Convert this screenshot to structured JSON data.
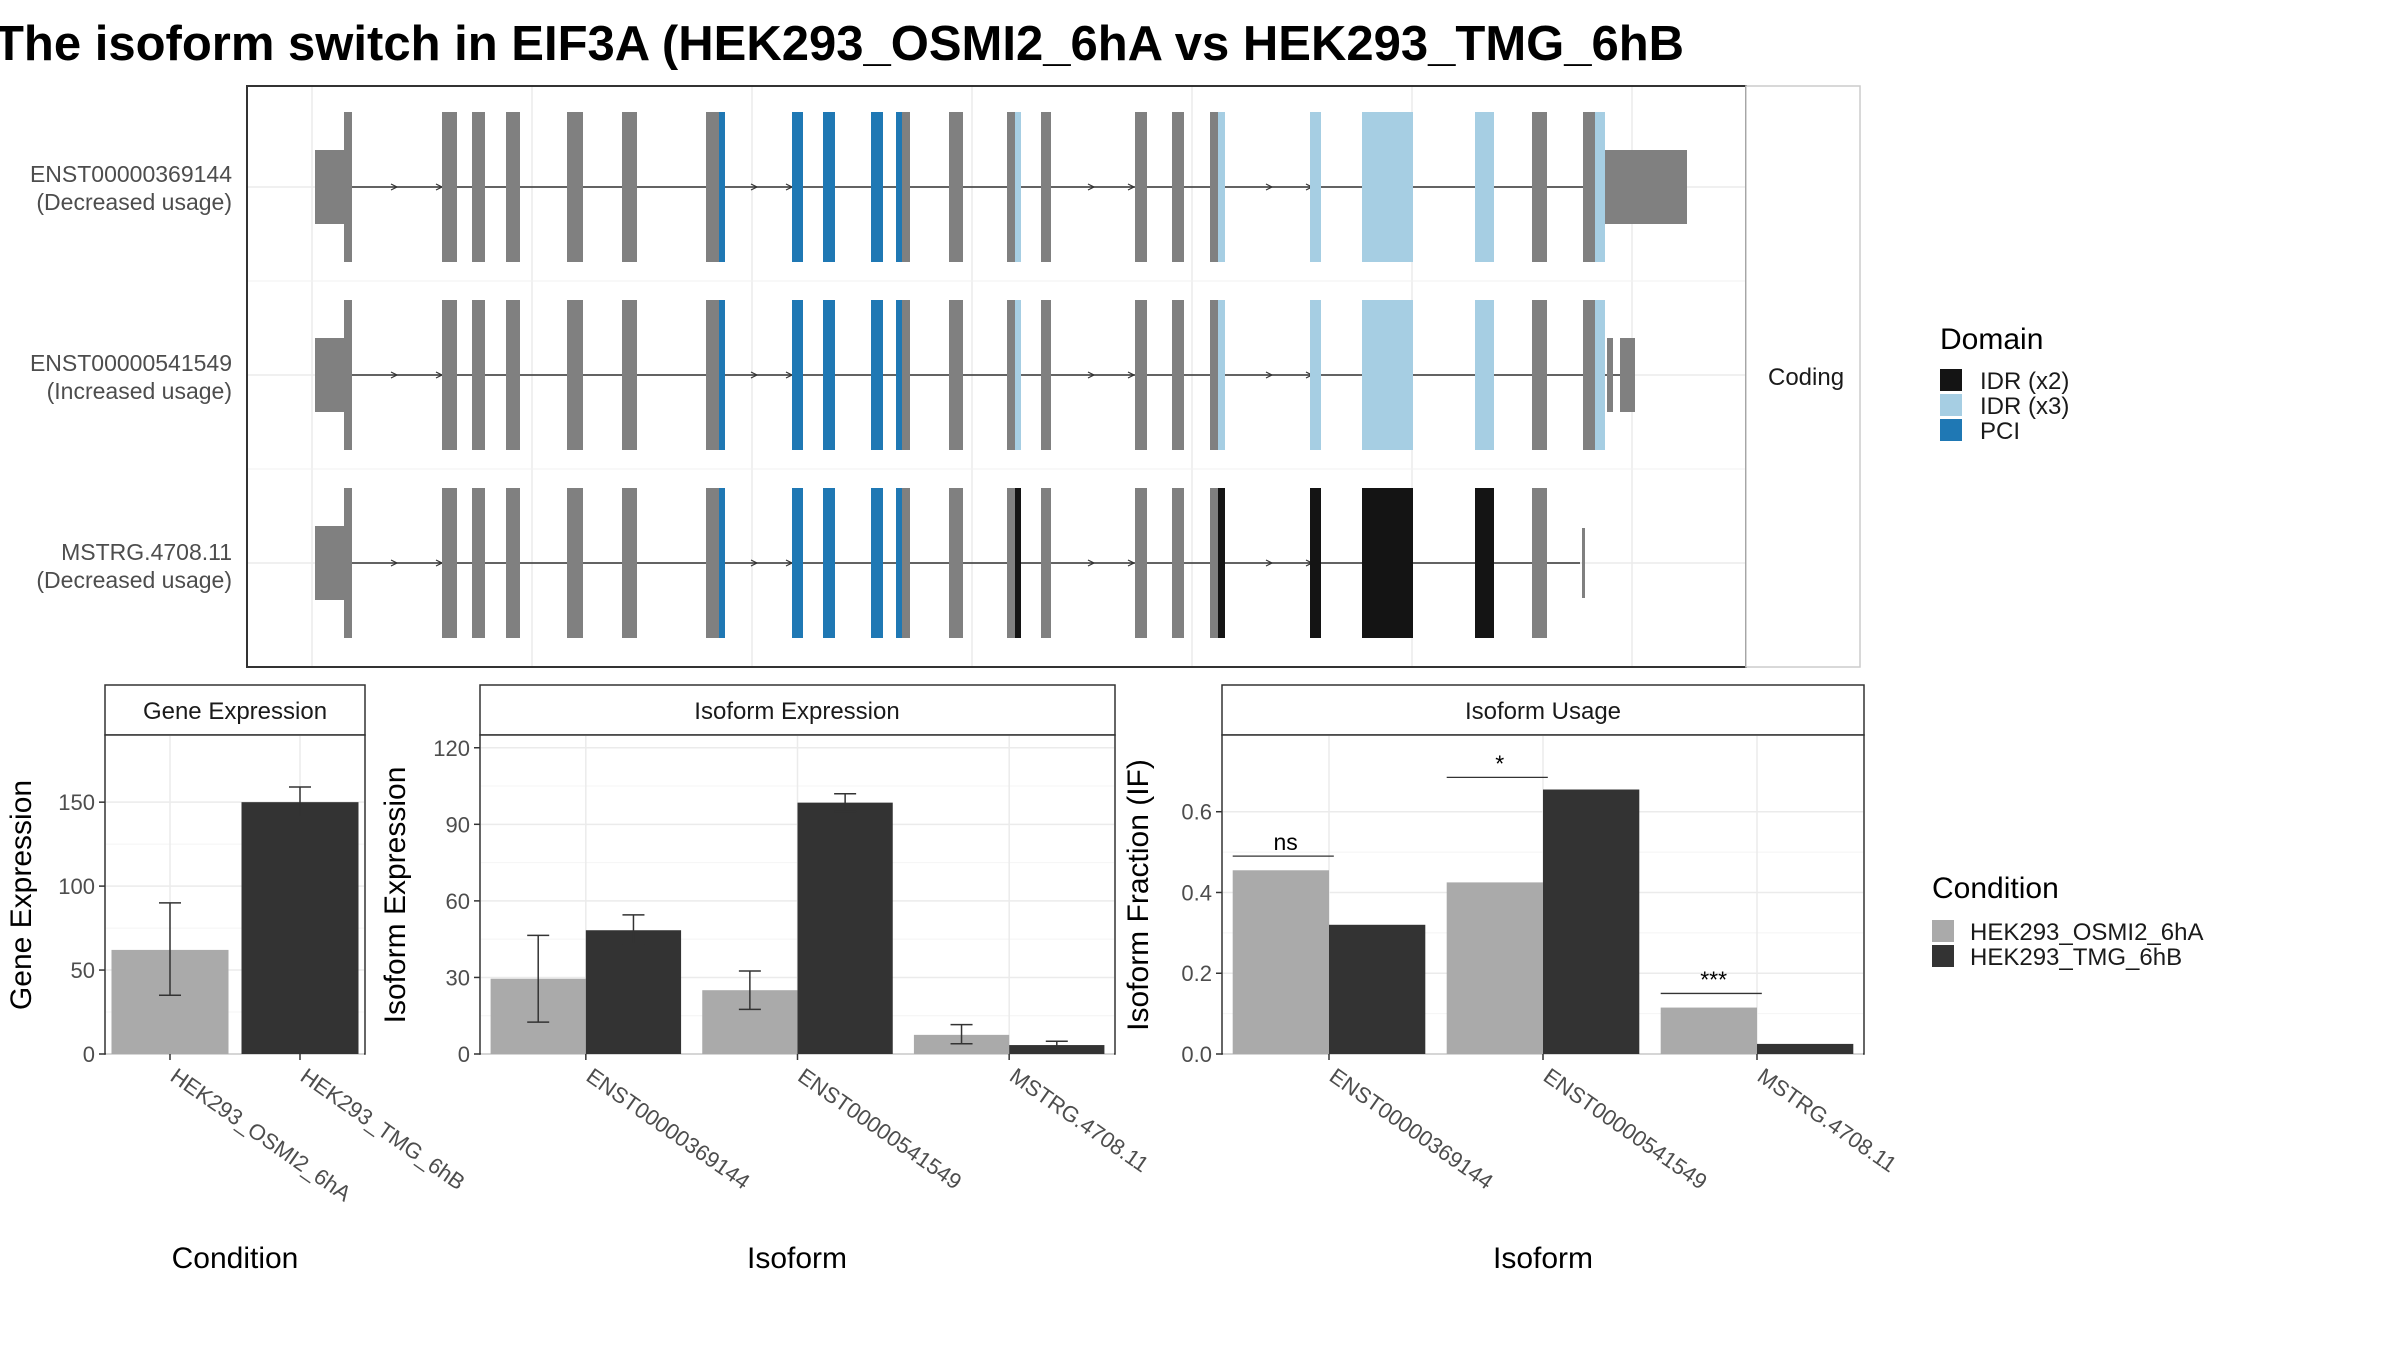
{
  "title": "The isoform switch in EIF3A (HEK293_OSMI2_6hA vs HEK293_TMG_6hB",
  "colors": {
    "idr_x2": "#141414",
    "idr_x3": "#a6cee3",
    "pci": "#1f78b4",
    "exon": "#808080",
    "osmi2": "#aaaaaa",
    "tmg": "#333333"
  },
  "structure": {
    "facet_label": "Coding",
    "transcripts": [
      {
        "id": "ENST00000369144",
        "usage": "(Decreased usage)"
      },
      {
        "id": "ENST00000541549",
        "usage": "(Increased usage)"
      },
      {
        "id": "MSTRG.4708.11",
        "usage": "(Decreased usage)"
      }
    ],
    "domain_legend": {
      "title": "Domain",
      "items": [
        {
          "label": "IDR (x2)",
          "color": "#141414"
        },
        {
          "label": "IDR (x3)",
          "color": "#a6cee3"
        },
        {
          "label": "PCI",
          "color": "#1f78b4"
        }
      ]
    }
  },
  "condition_legend": {
    "title": "Condition",
    "items": [
      {
        "label": "HEK293_OSMI2_6hA",
        "color": "#aaaaaa"
      },
      {
        "label": "HEK293_TMG_6hB",
        "color": "#333333"
      }
    ]
  },
  "chart_data": [
    {
      "type": "bar",
      "title": "Gene Expression",
      "xlabel": "Condition",
      "ylabel": "Gene Expression",
      "categories": [
        "HEK293_OSMI2_6hA",
        "HEK293_TMG_6hB"
      ],
      "ylim": [
        0,
        190
      ],
      "yticks": [
        0,
        50,
        100,
        150
      ],
      "series": [
        {
          "values": [
            62,
            150
          ],
          "error_low": [
            35,
            141
          ],
          "error_high": [
            90,
            159
          ]
        }
      ]
    },
    {
      "type": "bar",
      "title": "Isoform Expression",
      "xlabel": "Isoform",
      "ylabel": "Isoform Expression",
      "categories": [
        "ENST00000369144",
        "ENST00000541549",
        "MSTRG.4708.11"
      ],
      "ylim": [
        0,
        125
      ],
      "yticks": [
        0,
        30,
        60,
        90,
        120
      ],
      "series": [
        {
          "name": "HEK293_OSMI2_6hA",
          "values": [
            29.5,
            25,
            7.5
          ],
          "error_low": [
            12.5,
            17.5,
            4
          ],
          "error_high": [
            46.5,
            32.5,
            11.5
          ]
        },
        {
          "name": "HEK293_TMG_6hB",
          "values": [
            48.5,
            98.5,
            3.5
          ],
          "error_low": [
            43,
            95,
            2.5
          ],
          "error_high": [
            54.5,
            102,
            5
          ]
        }
      ]
    },
    {
      "type": "bar",
      "title": "Isoform Usage",
      "xlabel": "Isoform",
      "ylabel": "Isoform Fraction (IF)",
      "categories": [
        "ENST00000369144",
        "ENST00000541549",
        "MSTRG.4708.11"
      ],
      "ylim": [
        0,
        0.79
      ],
      "yticks": [
        0.0,
        0.2,
        0.4,
        0.6
      ],
      "ytick_labels": [
        "0.0",
        "0.2",
        "0.4",
        "0.6"
      ],
      "series": [
        {
          "name": "HEK293_OSMI2_6hA",
          "values": [
            0.455,
            0.425,
            0.115
          ]
        },
        {
          "name": "HEK293_TMG_6hB",
          "values": [
            0.32,
            0.655,
            0.025
          ]
        }
      ],
      "significance": [
        "ns",
        "*",
        "***"
      ],
      "significance_y": [
        0.49,
        0.685,
        0.15
      ]
    }
  ]
}
